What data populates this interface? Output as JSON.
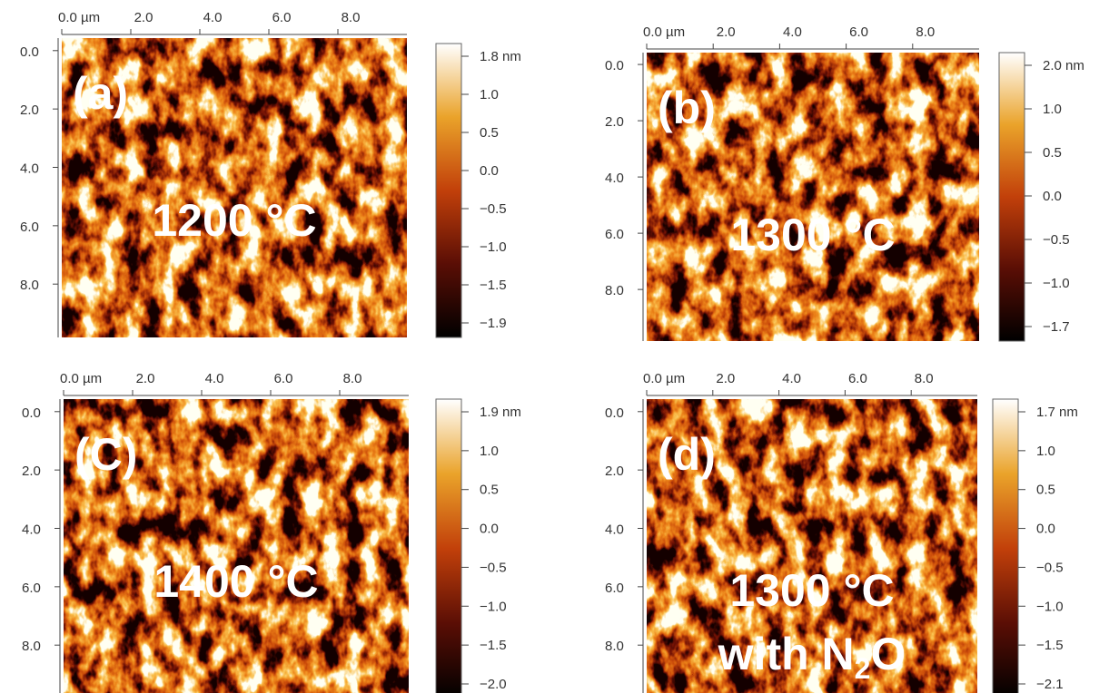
{
  "panels": [
    {
      "label": "(a)",
      "temperature": "1200 °C",
      "x_ticks": [
        "0.0 µm",
        "2.0",
        "4.0",
        "6.0",
        "8.0"
      ],
      "y_ticks": [
        "0.0",
        "2.0",
        "4.0",
        "6.0",
        "8.0"
      ],
      "colorbar_ticks": [
        "1.8 nm",
        "1.0",
        "0.5",
        "0.0",
        "−0.5",
        "−1.0",
        "−1.5",
        "−1.9"
      ]
    },
    {
      "label": "(b)",
      "temperature": "1300 °C",
      "x_ticks": [
        "0.0 µm",
        "2.0",
        "4.0",
        "6.0",
        "8.0"
      ],
      "y_ticks": [
        "0.0",
        "2.0",
        "4.0",
        "6.0",
        "8.0"
      ],
      "colorbar_ticks": [
        "2.0 nm",
        "1.0",
        "0.5",
        "0.0",
        "−0.5",
        "−1.0",
        "−1.7"
      ]
    },
    {
      "label": "(C)",
      "temperature": "1400 °C",
      "x_ticks": [
        "0.0 µm",
        "2.0",
        "4.0",
        "6.0",
        "8.0"
      ],
      "y_ticks": [
        "0.0",
        "2.0",
        "4.0",
        "6.0",
        "8.0"
      ],
      "colorbar_ticks": [
        "1.9 nm",
        "1.0",
        "0.5",
        "0.0",
        "−0.5",
        "−1.0",
        "−1.5",
        "−2.0"
      ]
    },
    {
      "label": "(d)",
      "temperature": "1300 °C",
      "note": {
        "before": "with N",
        "sub": "2",
        "after": "O"
      },
      "x_ticks": [
        "0.0 µm",
        "2.0",
        "4.0",
        "6.0",
        "8.0"
      ],
      "y_ticks": [
        "0.0",
        "2.0",
        "4.0",
        "6.0",
        "8.0"
      ],
      "colorbar_ticks": [
        "1.7 nm",
        "1.0",
        "0.5",
        "0.0",
        "−0.5",
        "−1.0",
        "−1.5",
        "−2.1"
      ]
    }
  ]
}
